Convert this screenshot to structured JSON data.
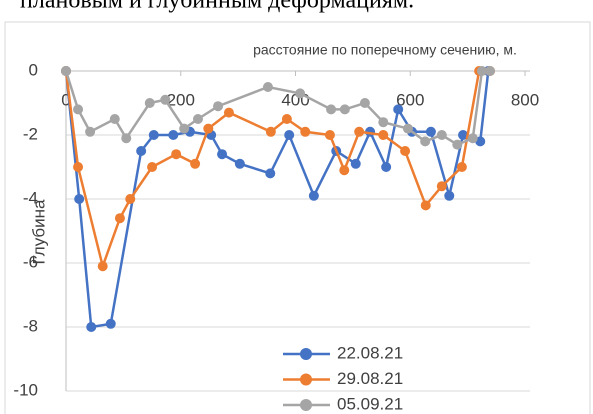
{
  "caption": "плановым и глубинным деформациям.",
  "chart_data": {
    "type": "line",
    "x_label": "расстояние по поперечному сечению, м.",
    "y_label": "Глубина",
    "xlim": [
      0,
      800
    ],
    "xticks": [
      0,
      200,
      400,
      600,
      800
    ],
    "ylim": [
      -10,
      0
    ],
    "yticks": [
      0,
      -2,
      -4,
      -6,
      -8,
      -10
    ],
    "grid": true,
    "legend": "bottom",
    "series": [
      {
        "name": "22.08.21",
        "color": "#4472c4",
        "x": [
          0,
          23,
          44,
          78,
          131,
          153,
          187,
          216,
          253,
          272,
          303,
          356,
          389,
          432,
          471,
          505,
          530,
          558,
          579,
          603,
          636,
          668,
          692,
          722,
          736
        ],
        "values": [
          0,
          -4,
          -8,
          -7.9,
          -2.5,
          -2,
          -2,
          -1.9,
          -2,
          -2.6,
          -2.9,
          -3.2,
          -2,
          -3.9,
          -2.5,
          -2.9,
          -1.9,
          -3,
          -1.2,
          -1.9,
          -1.9,
          -3.9,
          -2,
          -2.2,
          0
        ]
      },
      {
        "name": "29.08.21",
        "color": "#ed7d31",
        "x": [
          0,
          21,
          64,
          94,
          112,
          150,
          192,
          225,
          248,
          284,
          357,
          385,
          417,
          460,
          485,
          511,
          553,
          591,
          627,
          655,
          690,
          720,
          739
        ],
        "values": [
          0,
          -3,
          -6.1,
          -4.6,
          -4,
          -3,
          -2.6,
          -2.9,
          -1.8,
          -1.3,
          -1.9,
          -1.5,
          -1.9,
          -2,
          -3.1,
          -1.9,
          -2,
          -2.5,
          -4.2,
          -3.6,
          -3,
          0,
          0
        ]
      },
      {
        "name": "05.09.21",
        "color": "#a5a5a5",
        "x": [
          0,
          21,
          42,
          85,
          105,
          146,
          173,
          206,
          230,
          265,
          352,
          408,
          462,
          486,
          521,
          553,
          596,
          626,
          655,
          682,
          709,
          725,
          739
        ],
        "values": [
          0,
          -1.2,
          -1.9,
          -1.5,
          -2.1,
          -1,
          -0.9,
          -1.8,
          -1.5,
          -1.1,
          -0.5,
          -0.7,
          -1.2,
          -1.2,
          -1,
          -1.6,
          -1.8,
          -2.2,
          -2,
          -2.3,
          -2.1,
          0,
          0
        ]
      }
    ]
  }
}
